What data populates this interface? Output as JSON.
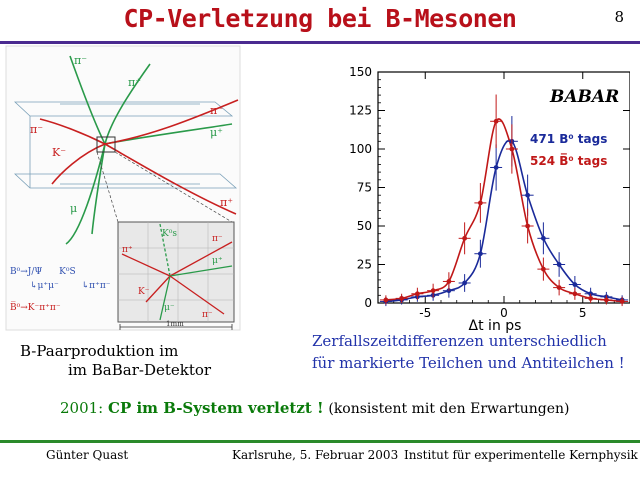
{
  "slide": {
    "title": "CP-Verletzung bei B-Mesonen",
    "page_number": "8"
  },
  "event_display": {
    "labels": {
      "pi_top": "π⁻",
      "pi_plus_top": "π⁺",
      "pi_right": "π⁻",
      "mu_plus": "μ⁺",
      "pi_left": "π⁻",
      "K_minus": "K⁻",
      "mu_minus": "μ",
      "pi_plus_right": "π⁺"
    },
    "decay1a": "B⁰→J/Ψ",
    "decay1b": "K⁰S",
    "decay1c": "↳μ⁺μ⁻",
    "decay1d": "↳π⁺π⁻",
    "decay2": "B̅⁰→K⁻π⁺π⁻",
    "inset_labels": {
      "ks": "K⁰s",
      "pi_plus_l": "π⁺",
      "pi_minus_r": "π⁻",
      "mu_plus": "μ⁺",
      "k_minus": "K⁻",
      "mu_minus": "μ⁻",
      "pi_minus_b": "π⁻",
      "scale": "1mm"
    },
    "colors": {
      "green": "#2a9a4a",
      "red": "#c82020",
      "blue": "#3050b0"
    }
  },
  "captions": {
    "left_line1": "B-Paarproduktion im",
    "left_line2": "im BaBar-Detektor",
    "right_line1": "Zerfallszeitdifferenzen unterschiedlich",
    "right_line2": "für markierte Teilchen und Antiteilchen !"
  },
  "result": {
    "year": "2001:",
    "statement": "CP im B-System verletzt !",
    "note": "(konsistent mit den Erwartungen)"
  },
  "footer": {
    "author": "Günter Quast",
    "place_date": "Karlsruhe,  5. Februar 2003",
    "institute": "Institut für experimentelle Kernphysik"
  },
  "chart_data": {
    "type": "scatter",
    "xlabel": "Δt in ps",
    "xlim": [
      -8,
      8
    ],
    "ylim": [
      0,
      150
    ],
    "xticks": [
      -5,
      0,
      5
    ],
    "yticks": [
      0,
      25,
      50,
      75,
      100,
      125,
      150
    ],
    "logo": "BABAR",
    "series": [
      {
        "name": "471 B⁰ tags",
        "color": "#1a2a9a",
        "x": [
          -7.5,
          -6.5,
          -5.5,
          -4.5,
          -3.5,
          -2.5,
          -1.5,
          -0.5,
          0.5,
          1.5,
          2.5,
          3.5,
          4.5,
          5.5,
          6.5,
          7.5
        ],
        "y": [
          1,
          2,
          4,
          5,
          8,
          13,
          32,
          88,
          105,
          70,
          42,
          25,
          12,
          6,
          4,
          2
        ]
      },
      {
        "name": "524 B̅⁰ tags",
        "color": "#c01818",
        "x": [
          -7.5,
          -6.5,
          -5.5,
          -4.5,
          -3.5,
          -2.5,
          -1.5,
          -0.5,
          0.5,
          1.5,
          2.5,
          3.5,
          4.5,
          5.5,
          6.5,
          7.5
        ],
        "y": [
          2,
          3,
          6,
          8,
          14,
          42,
          65,
          118,
          100,
          50,
          22,
          10,
          6,
          3,
          2,
          1
        ]
      }
    ]
  }
}
